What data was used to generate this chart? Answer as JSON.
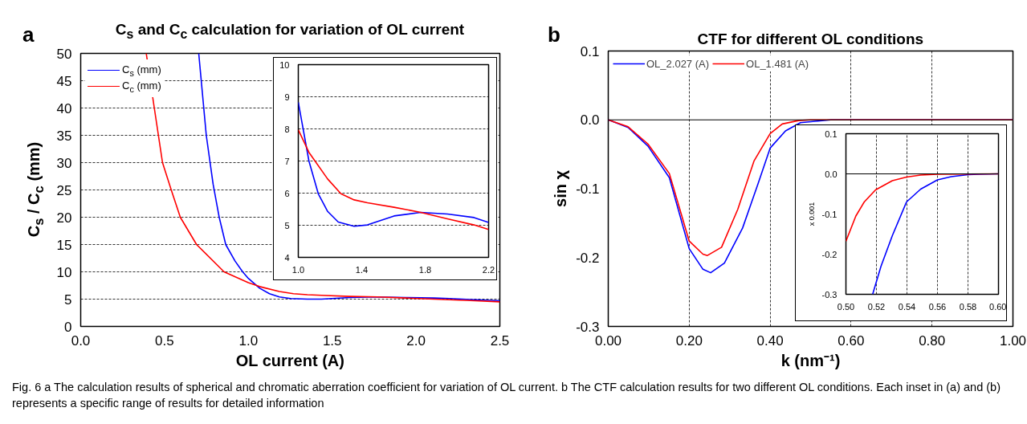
{
  "chart_data": [
    {
      "type": "line",
      "title": "C$_{s}$ and C$_{c}$ calculation for variation of OL current",
      "xlabel": "OL current (A)",
      "ylabel": "C$_{s}$ / C$_{c}$ (mm)",
      "annotations": [
        "a",
        "Fig. 6 a The calculation results of spherical and chromatic aberration coefficient for variation of OL current. b The CTF calculation results for two different OL conditions. Each inset in (a) and (b) represents a specific range of results for detailed information"
      ],
      "xlim": [
        0,
        2.5
      ],
      "ylim": [
        0,
        50
      ],
      "xticks": [
        {
          "value": 0,
          "label": "0.0"
        },
        {
          "value": 0.5,
          "label": "0.5"
        },
        {
          "value": 1,
          "label": "1.0"
        },
        {
          "value": 1.5,
          "label": "1.5"
        },
        {
          "value": 2,
          "label": "2.0"
        },
        {
          "value": 2.5,
          "label": "2.5"
        }
      ],
      "yticks": [
        0,
        5,
        10,
        15,
        20,
        25,
        30,
        35,
        40,
        45,
        50
      ],
      "grid": "y",
      "legend": "top left",
      "line_style": "solid",
      "series": [
        {
          "name": "C$_{s}$ (mm)",
          "color": "#0000ff",
          "x": [
            0.704,
            0.749,
            0.79,
            0.826,
            0.865,
            0.92,
            0.966,
            1.0,
            1.067,
            1.126,
            1.185,
            1.252,
            1.352,
            1.436,
            1.604,
            1.772,
            1.94,
            2.108,
            2.2,
            2.35,
            2.5
          ],
          "values": [
            50,
            35,
            26,
            20,
            15,
            12,
            10,
            8.8,
            7.0,
            6.0,
            5.4,
            5.1,
            5.0,
            5.0,
            5.3,
            5.4,
            5.3,
            5.2,
            5.1,
            4.9,
            4.7
          ]
        },
        {
          "name": "C$_{c}$ (mm)",
          "color": "#ff0000",
          "x": [
            0.391,
            0.439,
            0.488,
            0.54,
            0.594,
            0.691,
            0.855,
            1.0,
            1.067,
            1.185,
            1.269,
            1.352,
            1.436,
            1.604,
            1.772,
            1.94,
            2.108,
            2.2,
            2.35,
            2.5
          ],
          "values": [
            50,
            40,
            30,
            25,
            20,
            15,
            10,
            8.0,
            7.3,
            6.4,
            6.0,
            5.8,
            5.7,
            5.5,
            5.4,
            5.2,
            5.0,
            4.9,
            4.7,
            4.5
          ]
        }
      ]
    },
    {
      "type": "line",
      "xlim": [
        1.0,
        2.2
      ],
      "ylim": [
        4,
        10
      ],
      "xticks": [
        {
          "value": 1.0,
          "label": "1.0"
        },
        {
          "value": 1.4,
          "label": "1.4"
        },
        {
          "value": 1.8,
          "label": "1.8"
        },
        {
          "value": 2.2,
          "label": "2.2"
        }
      ],
      "yticks": [
        4,
        5,
        6,
        7,
        8,
        9,
        10
      ],
      "grid": "y",
      "line_style": "solid",
      "series": [
        {
          "color": "#0000ff",
          "x": [
            1.0,
            1.067,
            1.126,
            1.185,
            1.252,
            1.352,
            1.436,
            1.52,
            1.604,
            1.772,
            1.94,
            2.108,
            2.2
          ],
          "values": [
            8.83,
            7.0,
            5.98,
            5.43,
            5.1,
            4.97,
            5.01,
            5.15,
            5.29,
            5.4,
            5.35,
            5.24,
            5.09
          ]
        },
        {
          "color": "#ff0000",
          "x": [
            1.0,
            1.067,
            1.185,
            1.269,
            1.352,
            1.436,
            1.604,
            1.772,
            1.94,
            2.108,
            2.2
          ],
          "values": [
            7.97,
            7.27,
            6.44,
            5.98,
            5.79,
            5.7,
            5.56,
            5.4,
            5.2,
            5.01,
            4.87
          ]
        }
      ]
    },
    {
      "type": "line",
      "title": "CTF for different OL conditions",
      "xlabel": "k (nm⁻¹)",
      "ylabel": "sin χ",
      "annotations": [
        "b"
      ],
      "xlim": [
        0,
        1.0
      ],
      "ylim": [
        -0.3,
        0.1
      ],
      "xticks": [
        {
          "value": 0,
          "label": "0.00"
        },
        {
          "value": 0.2,
          "label": "0.20"
        },
        {
          "value": 0.4,
          "label": "0.40"
        },
        {
          "value": 0.6,
          "label": "0.60"
        },
        {
          "value": 0.8,
          "label": "0.80"
        },
        {
          "value": 1.0,
          "label": "1.00"
        }
      ],
      "yticks": [
        {
          "value": -0.3,
          "label": "-0.3"
        },
        {
          "value": -0.2,
          "label": "-0.2"
        },
        {
          "value": -0.1,
          "label": "-0.1"
        },
        {
          "value": 0,
          "label": "0.0"
        },
        {
          "value": 0.1,
          "label": "0.1"
        }
      ],
      "grid": "x",
      "legend": "top left",
      "line_style": "solid",
      "ref_lines": [
        {
          "axis": "y",
          "value": 0,
          "color": "#000000",
          "line_style": "solid"
        }
      ],
      "series": [
        {
          "name": "OL_2.027 (A)",
          "color": "#0000ff",
          "x": [
            0,
            0.049,
            0.098,
            0.151,
            0.2,
            0.234,
            0.253,
            0.287,
            0.332,
            0.37,
            0.4,
            0.438,
            0.475,
            0.55,
            1.0
          ],
          "values": [
            0,
            -0.011,
            -0.038,
            -0.084,
            -0.187,
            -0.217,
            -0.222,
            -0.208,
            -0.157,
            -0.093,
            -0.041,
            -0.016,
            -0.004,
            0,
            0
          ]
        },
        {
          "name": "OL_1.481 (A)",
          "color": "#ff0000",
          "x": [
            0,
            0.049,
            0.098,
            0.151,
            0.2,
            0.234,
            0.245,
            0.28,
            0.32,
            0.36,
            0.4,
            0.43,
            0.47,
            0.5,
            1.0
          ],
          "values": [
            0,
            -0.01,
            -0.035,
            -0.078,
            -0.176,
            -0.195,
            -0.197,
            -0.185,
            -0.13,
            -0.06,
            -0.02,
            -0.006,
            -0.001,
            0,
            0
          ]
        }
      ]
    },
    {
      "type": "line",
      "ylabel": "x 0.001",
      "xlim": [
        0.5,
        0.6
      ],
      "ylim": [
        -0.3,
        0.1
      ],
      "xticks": [
        {
          "value": 0.5,
          "label": "0.50"
        },
        {
          "value": 0.52,
          "label": "0.52"
        },
        {
          "value": 0.54,
          "label": "0.54"
        },
        {
          "value": 0.56,
          "label": "0.56"
        },
        {
          "value": 0.58,
          "label": "0.58"
        },
        {
          "value": 0.6,
          "label": "0.60"
        }
      ],
      "yticks": [
        {
          "value": -0.3,
          "label": "-0.3"
        },
        {
          "value": -0.2,
          "label": "-0.2"
        },
        {
          "value": -0.1,
          "label": "-0.1"
        },
        {
          "value": 0,
          "label": "0.0"
        },
        {
          "value": 0.1,
          "label": "0.1"
        }
      ],
      "grid": "x",
      "line_style": "solid",
      "ref_lines": [
        {
          "axis": "y",
          "value": 0,
          "color": "#000000",
          "line_style": "solid"
        }
      ],
      "series": [
        {
          "color": "#0000ff",
          "x": [
            0.5175,
            0.523,
            0.5304,
            0.5397,
            0.549,
            0.56,
            0.569,
            0.58,
            0.5876,
            0.6
          ],
          "values": [
            -0.3,
            -0.23,
            -0.154,
            -0.07,
            -0.038,
            -0.015,
            -0.007,
            -0.002,
            -0.001,
            0
          ]
        },
        {
          "color": "#ff0000",
          "x": [
            0.5,
            0.5065,
            0.512,
            0.5194,
            0.5304,
            0.5397,
            0.549,
            0.56,
            0.6
          ],
          "values": [
            -0.168,
            -0.105,
            -0.07,
            -0.04,
            -0.017,
            -0.008,
            -0.003,
            -0.001,
            0
          ]
        }
      ]
    }
  ]
}
